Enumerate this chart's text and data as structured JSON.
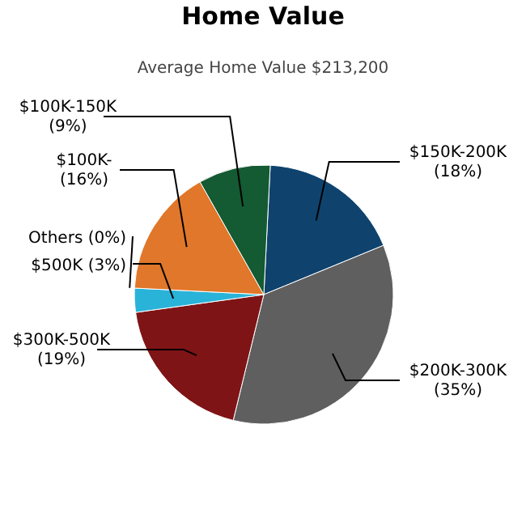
{
  "chart_data": {
    "type": "pie",
    "title": "Home Value",
    "subtitle": "Average Home Value  $213,200",
    "categories": [
      "$150K-200K",
      "$200K-300K",
      "$300K-500K",
      "$500K",
      "Others",
      "$100K-",
      "$100K-150K"
    ],
    "values": [
      18,
      35,
      19,
      3,
      0,
      16,
      9
    ],
    "value_labels": [
      "(18%)",
      "(35%)",
      "(19%)",
      "(3%)",
      "(0%)",
      "(16%)",
      "(9%)"
    ],
    "colors": [
      "#0f436e",
      "#5f5f5f",
      "#7f1416",
      "#2ab3d8",
      null,
      "#e0772a",
      "#145a32"
    ]
  }
}
